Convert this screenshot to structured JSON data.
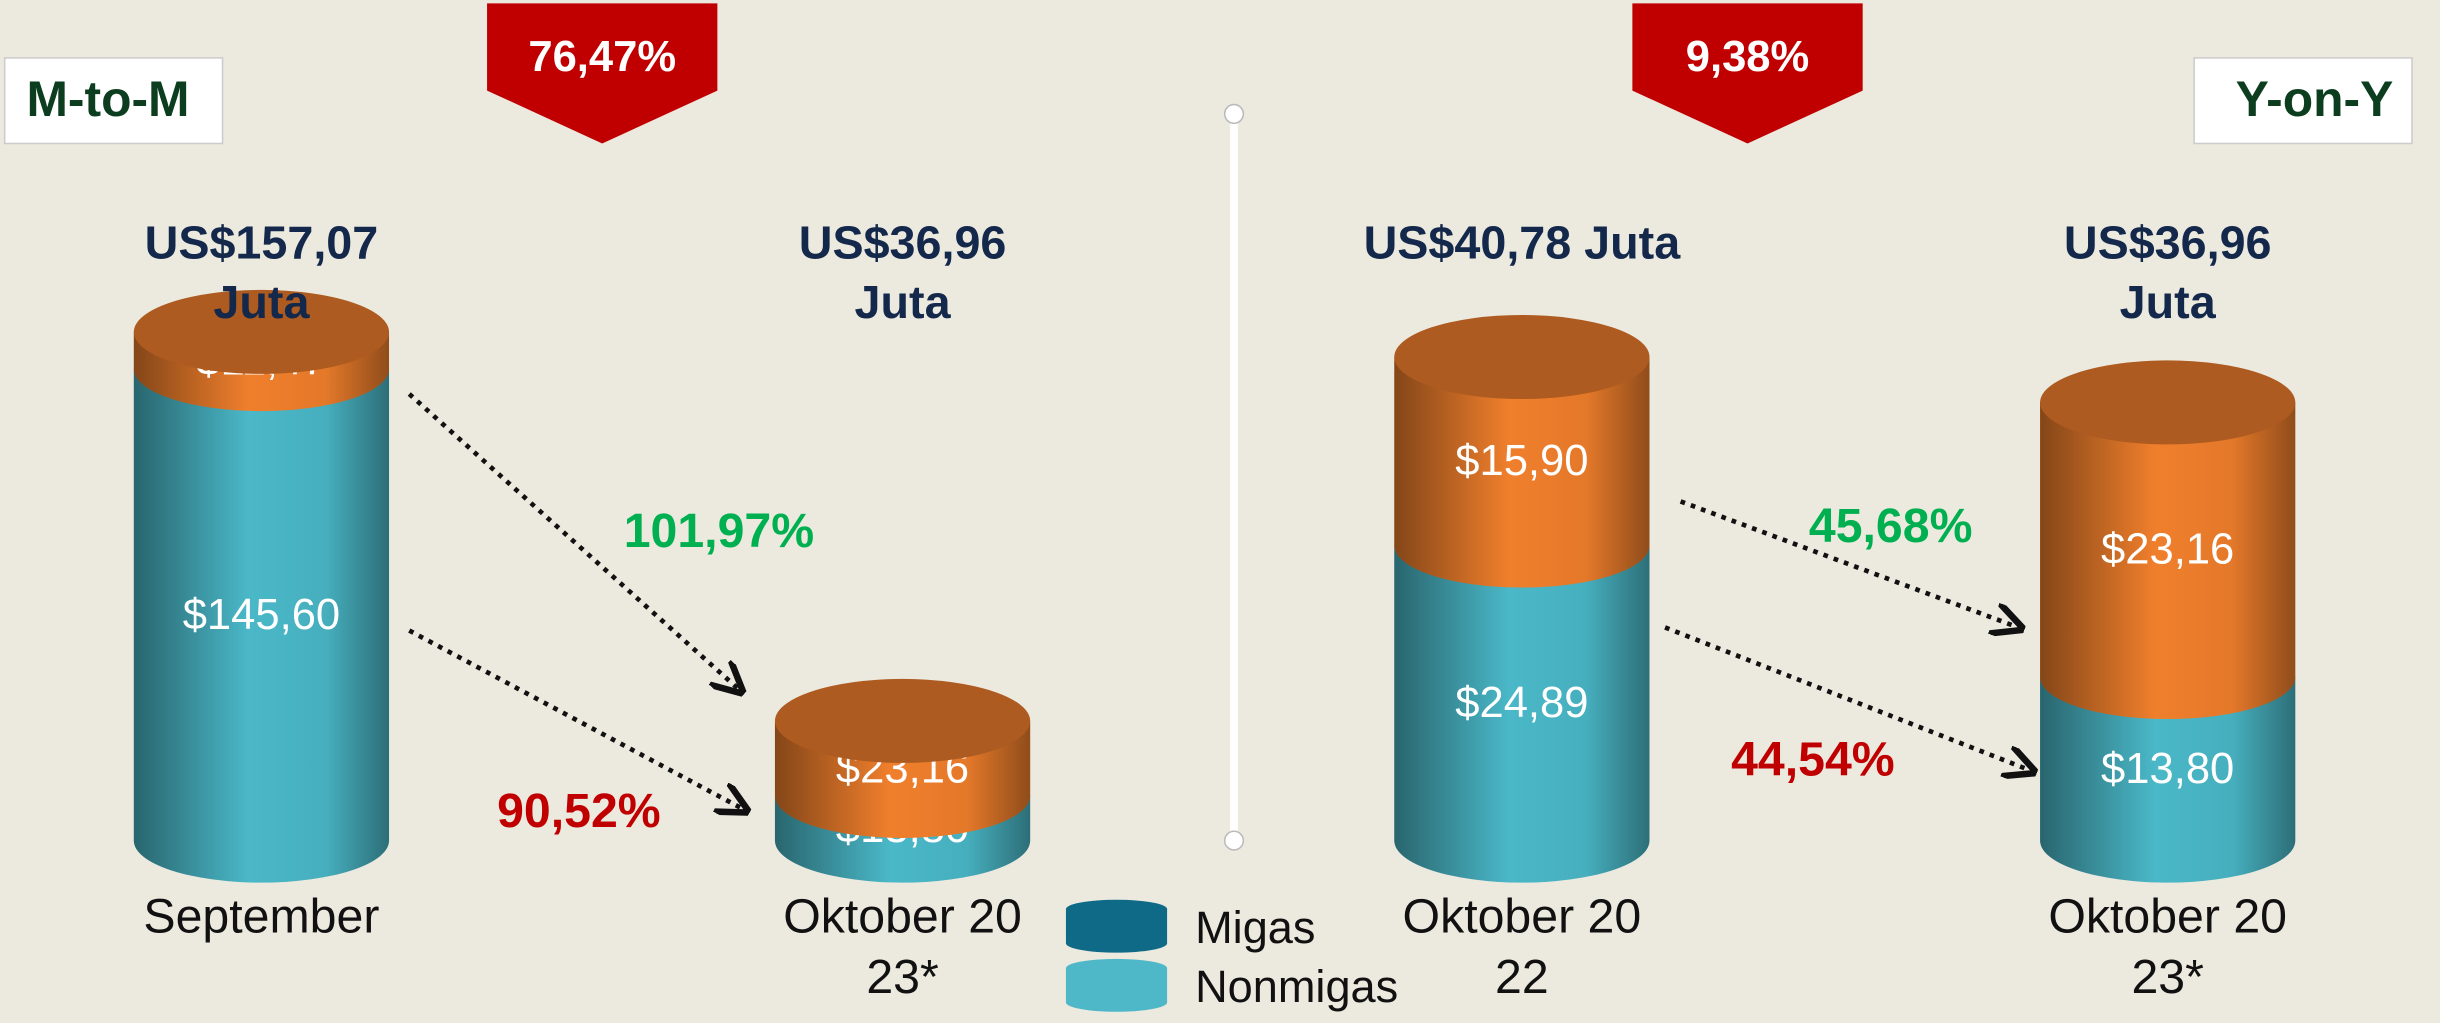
{
  "chart_data": [
    {
      "type": "stacked_cylinder",
      "mode": "M-to-M",
      "badge": "76,47%",
      "categories": [
        "September",
        "Oktober 2023*"
      ],
      "total_labels": [
        "US$157,07 Juta",
        "US$36,96 Juta"
      ],
      "ylim": [
        0,
        160
      ],
      "series": [
        {
          "name": "Nonmigas",
          "color": "#4ab8c8",
          "legend_color": "#4fb8c8",
          "values": [
            145.6,
            13.8
          ],
          "value_labels": [
            "$145,60",
            "$13,80"
          ]
        },
        {
          "name": "Migas",
          "color": "#f07f2c",
          "legend_color": "#0e6a86",
          "values": [
            11.47,
            23.16
          ],
          "value_labels": [
            "$11,47",
            "$23,16"
          ]
        }
      ],
      "changes": [
        {
          "label": "101,97%",
          "color": "#00b050"
        },
        {
          "label": "90,52%",
          "color": "#c00000"
        }
      ]
    },
    {
      "type": "stacked_cylinder",
      "mode": "Y-on-Y",
      "badge": "9,38%",
      "categories": [
        "Oktober 2022",
        "Oktober 2023*"
      ],
      "total_labels": [
        "US$40,78 Juta",
        "US$36,96 Juta"
      ],
      "ylim": [
        0,
        42
      ],
      "series": [
        {
          "name": "Nonmigas",
          "color": "#4ab8c8",
          "legend_color": "#4fb8c8",
          "values": [
            24.89,
            13.8
          ],
          "value_labels": [
            "$24,89",
            "$13,80"
          ]
        },
        {
          "name": "Migas",
          "color": "#f07f2c",
          "legend_color": "#0e6a86",
          "values": [
            15.9,
            23.16
          ],
          "value_labels": [
            "$15,90",
            "$23,16"
          ]
        }
      ],
      "changes": [
        {
          "label": "45,68%",
          "color": "#00b050"
        },
        {
          "label": "44,54%",
          "color": "#c00000"
        }
      ]
    }
  ]
}
